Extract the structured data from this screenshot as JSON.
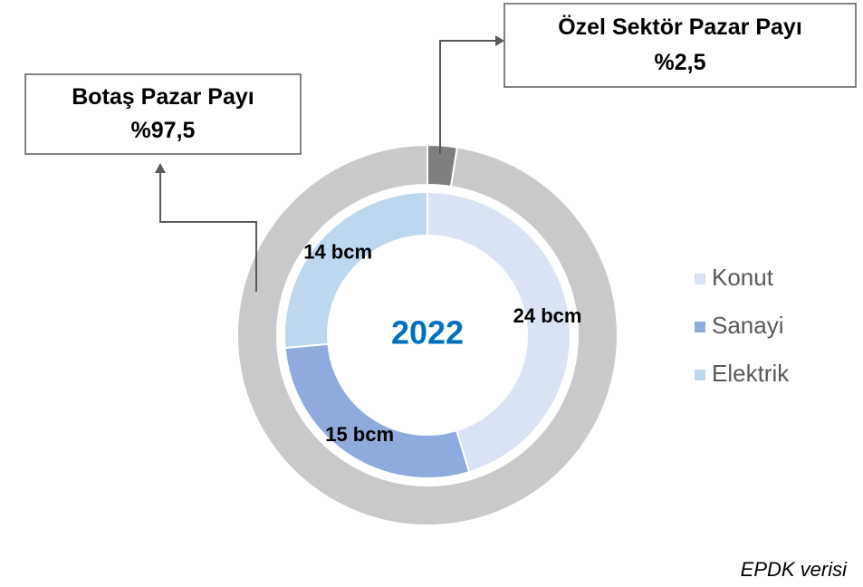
{
  "chart_data": {
    "type": "donut",
    "center_label": "2022",
    "source": "EPDK verisi",
    "rings": [
      {
        "categories": [
          "Konut",
          "Sanayi",
          "Elektrik"
        ],
        "values": [
          24,
          15,
          14
        ],
        "value_labels": [
          "24 bcm",
          "15 bcm",
          "14 bcm"
        ],
        "colors": [
          "#dae3f3",
          "#8faadc",
          "#bdd7ee"
        ]
      },
      {
        "categories": [
          "Özel Sektör Pazar Payı",
          "Botaş Pazar Payı"
        ],
        "values": [
          2.5,
          97.5
        ],
        "value_labels": [
          "%2,5",
          "%97,5"
        ],
        "colors": [
          "#7f7f7f",
          "#c9c9c9"
        ]
      }
    ],
    "legend": "right"
  }
}
